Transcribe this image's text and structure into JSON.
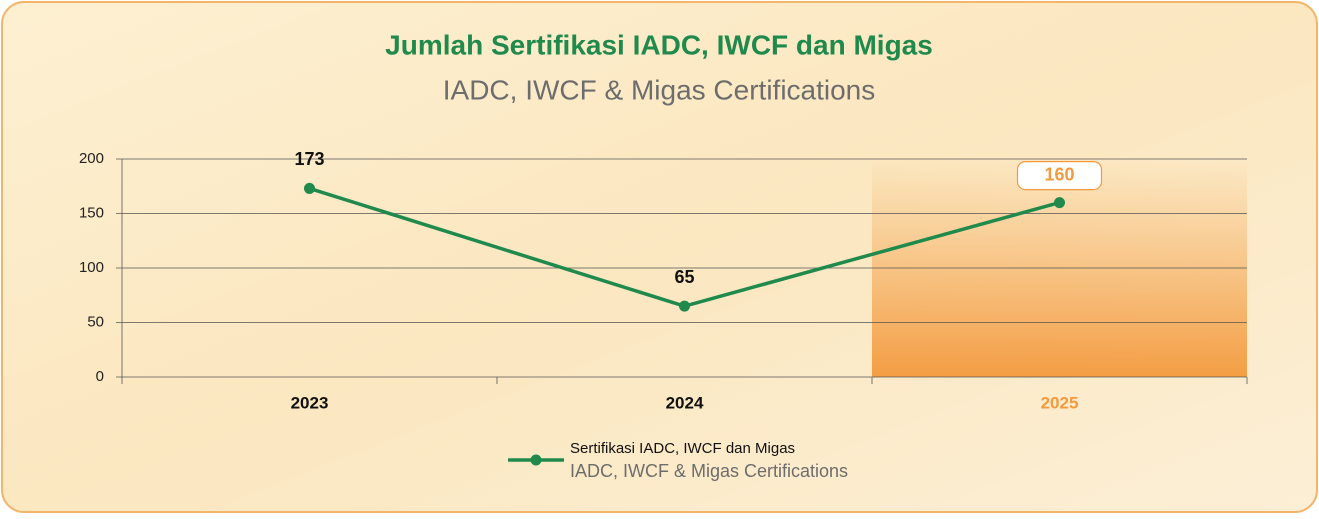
{
  "chart_data": {
    "type": "line",
    "title": "Jumlah Sertifikasi IADC, IWCF dan Migas",
    "subtitle": "IADC, IWCF & Migas Certifications",
    "categories": [
      "2023",
      "2024",
      "2025"
    ],
    "series": [
      {
        "name": "Sertifikasi IADC, IWCF dan Migas",
        "name_en": "IADC, IWCF & Migas Certifications",
        "color": "#1f8a4c",
        "values": [
          173,
          65,
          160
        ]
      }
    ],
    "ylim": [
      0,
      200
    ],
    "yticks": [
      0,
      50,
      100,
      150,
      200
    ],
    "grid": true,
    "highlight_index": 2,
    "highlight_color": "#f39a3d",
    "legend": "bottom"
  }
}
